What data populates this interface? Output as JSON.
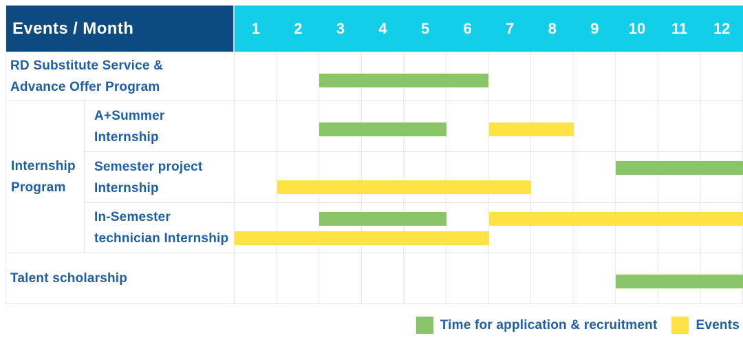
{
  "header": {
    "title": "Events / Month",
    "months": [
      "1",
      "2",
      "3",
      "4",
      "5",
      "6",
      "7",
      "8",
      "9",
      "10",
      "11",
      "12"
    ]
  },
  "colors": {
    "header_navy": "#0d4a7f",
    "header_cyan": "#12cee8",
    "bar_green": "#8ac468",
    "bar_yellow": "#ffe345",
    "text_blue": "#1d5fa7",
    "grid_line": "#e6e6e6"
  },
  "legend": [
    {
      "kind": "recruitment",
      "label": "Time for application & recruitment"
    },
    {
      "kind": "event",
      "label": "Events"
    }
  ],
  "chart_data": {
    "type": "gantt",
    "x_unit": "month",
    "x_range": [
      1,
      12
    ],
    "bar_kinds": {
      "recruitment": "Time for application & recruitment (green)",
      "event": "Events (yellow)"
    },
    "group_label_lines": {
      "Internship Program": [
        "Internship",
        "Program"
      ]
    },
    "rows": [
      {
        "group": "",
        "label_lines": [
          "RD Substitute Service &",
          "Advance Offer Program"
        ],
        "bars": [
          {
            "kind": "recruitment",
            "start_month": 3,
            "end_month": 6,
            "band": "single"
          }
        ]
      },
      {
        "group": "Internship Program",
        "label_lines": [
          "A+Summer",
          "Internship"
        ],
        "bars": [
          {
            "kind": "recruitment",
            "start_month": 3,
            "end_month": 5,
            "band": "single"
          },
          {
            "kind": "event",
            "start_month": 7,
            "end_month": 8,
            "band": "single"
          }
        ]
      },
      {
        "group": "Internship Program",
        "label_lines": [
          "Semester project",
          "Internship"
        ],
        "bars": [
          {
            "kind": "recruitment",
            "start_month": 10,
            "end_month": 12,
            "band": "top"
          },
          {
            "kind": "event",
            "start_month": 2,
            "end_month": 7,
            "band": "bottom"
          }
        ]
      },
      {
        "group": "Internship Program",
        "label_lines": [
          "In-Semester",
          "technician Internship"
        ],
        "bars": [
          {
            "kind": "recruitment",
            "start_month": 3,
            "end_month": 5,
            "band": "top"
          },
          {
            "kind": "event",
            "start_month": 7,
            "end_month": 12,
            "band": "top"
          },
          {
            "kind": "event",
            "start_month": 1,
            "end_month": 6,
            "band": "bottom"
          }
        ]
      },
      {
        "group": "",
        "label_lines": [
          "Talent scholarship"
        ],
        "bars": [
          {
            "kind": "recruitment",
            "start_month": 10,
            "end_month": 12,
            "band": "single"
          }
        ]
      }
    ]
  }
}
